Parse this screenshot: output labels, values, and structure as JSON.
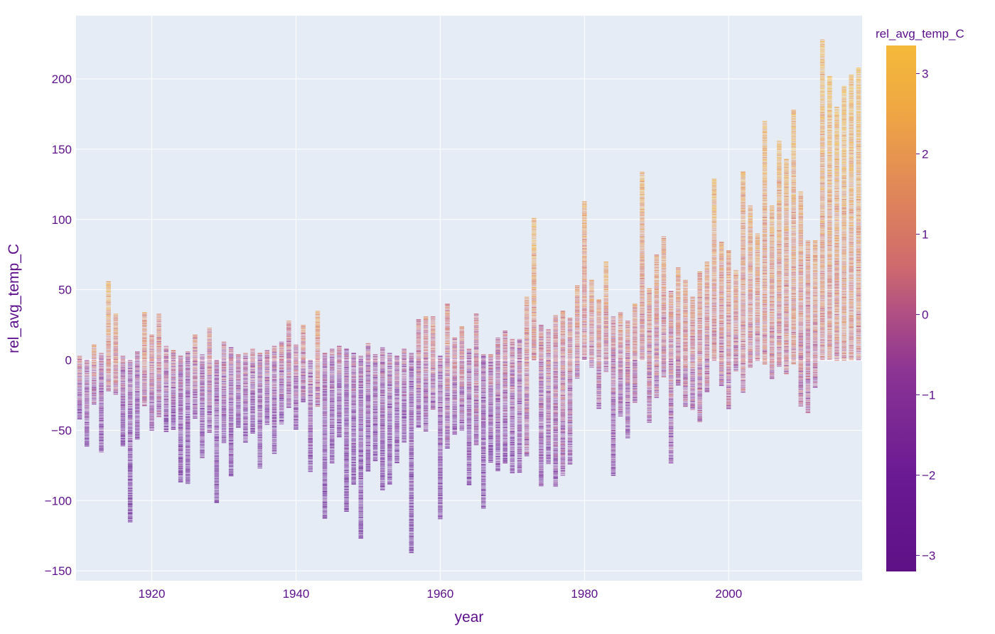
{
  "chart_data": {
    "type": "scatter",
    "marker": "dash",
    "xlabel": "year",
    "ylabel": "rel_avg_temp_C",
    "xlim": [
      1910,
      2018
    ],
    "ylim": [
      -157,
      245
    ],
    "x_ticks": [
      {
        "value": 1920,
        "label": "1920"
      },
      {
        "value": 1940,
        "label": "1940"
      },
      {
        "value": 1960,
        "label": "1960"
      },
      {
        "value": 1980,
        "label": "1980"
      },
      {
        "value": 2000,
        "label": "2000"
      }
    ],
    "y_ticks": [
      {
        "value": 200,
        "label": "200"
      },
      {
        "value": 150,
        "label": "150"
      },
      {
        "value": 100,
        "label": "100"
      },
      {
        "value": 50,
        "label": "50"
      },
      {
        "value": 0,
        "label": "0"
      },
      {
        "value": -50,
        "label": "−50"
      },
      {
        "value": -100,
        "label": "−100"
      },
      {
        "value": -150,
        "label": "−150"
      }
    ],
    "grid": true,
    "colorbar": {
      "title": "rel_avg_temp_C",
      "range": [
        -3.2,
        3.35
      ],
      "ticks": [
        {
          "value": 3,
          "label": "3"
        },
        {
          "value": 2,
          "label": "2"
        },
        {
          "value": 1,
          "label": "1"
        },
        {
          "value": 0,
          "label": "0"
        },
        {
          "value": -1,
          "label": "−1"
        },
        {
          "value": -2,
          "label": "−2"
        },
        {
          "value": -3,
          "label": "−3"
        }
      ],
      "colorscale": [
        "#0d0887",
        "#46039f",
        "#7201a8",
        "#9c179e",
        "#bd3786",
        "#d8576b",
        "#ed7953",
        "#fb9f3a",
        "#fdca26",
        "#f0f921"
      ]
    },
    "columns": [
      {
        "year": 1910,
        "min": -42,
        "max": 3,
        "mean": -0.7
      },
      {
        "year": 1911,
        "min": -61,
        "max": 0,
        "mean": -1.0
      },
      {
        "year": 1912,
        "min": -32,
        "max": 11,
        "mean": 0.1
      },
      {
        "year": 1913,
        "min": -66,
        "max": 5,
        "mean": -1.2
      },
      {
        "year": 1914,
        "min": -22,
        "max": 56,
        "mean": 1.4
      },
      {
        "year": 1915,
        "min": -25,
        "max": 33,
        "mean": 0.8
      },
      {
        "year": 1916,
        "min": -61,
        "max": 3,
        "mean": -1.1
      },
      {
        "year": 1917,
        "min": -115,
        "max": 0,
        "mean": -1.7
      },
      {
        "year": 1918,
        "min": -56,
        "max": 6,
        "mean": -1.2
      },
      {
        "year": 1919,
        "min": -33,
        "max": 34,
        "mean": 0.7
      },
      {
        "year": 1920,
        "min": -50,
        "max": 18,
        "mean": -0.3
      },
      {
        "year": 1921,
        "min": -40,
        "max": 33,
        "mean": 0.3
      },
      {
        "year": 1922,
        "min": -51,
        "max": 10,
        "mean": -0.8
      },
      {
        "year": 1923,
        "min": -49,
        "max": 7,
        "mean": -0.8
      },
      {
        "year": 1924,
        "min": -87,
        "max": 3,
        "mean": -1.5
      },
      {
        "year": 1925,
        "min": -88,
        "max": 6,
        "mean": -1.5
      },
      {
        "year": 1926,
        "min": -42,
        "max": 18,
        "mean": -0.1
      },
      {
        "year": 1927,
        "min": -70,
        "max": 4,
        "mean": -1.2
      },
      {
        "year": 1928,
        "min": -52,
        "max": 23,
        "mean": -0.2
      },
      {
        "year": 1929,
        "min": -102,
        "max": 0,
        "mean": -1.6
      },
      {
        "year": 1930,
        "min": -59,
        "max": 13,
        "mean": -0.8
      },
      {
        "year": 1931,
        "min": -82,
        "max": 9,
        "mean": -1.3
      },
      {
        "year": 1932,
        "min": -48,
        "max": 4,
        "mean": -0.9
      },
      {
        "year": 1933,
        "min": -58,
        "max": 5,
        "mean": -1.0
      },
      {
        "year": 1934,
        "min": -52,
        "max": 8,
        "mean": -0.9
      },
      {
        "year": 1935,
        "min": -77,
        "max": 5,
        "mean": -1.2
      },
      {
        "year": 1936,
        "min": -46,
        "max": 7,
        "mean": -0.8
      },
      {
        "year": 1937,
        "min": -66,
        "max": 10,
        "mean": -1.0
      },
      {
        "year": 1938,
        "min": -46,
        "max": 13,
        "mean": -0.7
      },
      {
        "year": 1939,
        "min": -34,
        "max": 28,
        "mean": -0.1
      },
      {
        "year": 1940,
        "min": -49,
        "max": 11,
        "mean": -0.7
      },
      {
        "year": 1941,
        "min": -30,
        "max": 25,
        "mean": 0.1
      },
      {
        "year": 1942,
        "min": -79,
        "max": 0,
        "mean": -1.2
      },
      {
        "year": 1943,
        "min": -33,
        "max": 35,
        "mean": 0.9
      },
      {
        "year": 1944,
        "min": -113,
        "max": 5,
        "mean": -1.6
      },
      {
        "year": 1945,
        "min": -73,
        "max": 8,
        "mean": -1.2
      },
      {
        "year": 1946,
        "min": -55,
        "max": 10,
        "mean": -1.0
      },
      {
        "year": 1947,
        "min": -108,
        "max": 8,
        "mean": -1.6
      },
      {
        "year": 1948,
        "min": -88,
        "max": 5,
        "mean": -1.4
      },
      {
        "year": 1949,
        "min": -127,
        "max": 3,
        "mean": -1.8
      },
      {
        "year": 1950,
        "min": -79,
        "max": 12,
        "mean": -1.2
      },
      {
        "year": 1951,
        "min": -72,
        "max": 4,
        "mean": -1.3
      },
      {
        "year": 1952,
        "min": -92,
        "max": 9,
        "mean": -1.3
      },
      {
        "year": 1953,
        "min": -88,
        "max": 5,
        "mean": -1.4
      },
      {
        "year": 1954,
        "min": -73,
        "max": 3,
        "mean": -1.2
      },
      {
        "year": 1955,
        "min": -58,
        "max": 8,
        "mean": -1.0
      },
      {
        "year": 1956,
        "min": -137,
        "max": 5,
        "mean": -1.9
      },
      {
        "year": 1957,
        "min": -48,
        "max": 29,
        "mean": -0.2
      },
      {
        "year": 1958,
        "min": -51,
        "max": 31,
        "mean": -0.2
      },
      {
        "year": 1959,
        "min": -35,
        "max": 31,
        "mean": 0.1
      },
      {
        "year": 1960,
        "min": -113,
        "max": 3,
        "mean": -1.6
      },
      {
        "year": 1961,
        "min": -63,
        "max": 40,
        "mean": 0.0
      },
      {
        "year": 1962,
        "min": -53,
        "max": 16,
        "mean": -0.5
      },
      {
        "year": 1963,
        "min": -50,
        "max": 24,
        "mean": -0.2
      },
      {
        "year": 1964,
        "min": -89,
        "max": 8,
        "mean": -1.3
      },
      {
        "year": 1965,
        "min": -60,
        "max": 33,
        "mean": -0.2
      },
      {
        "year": 1966,
        "min": -106,
        "max": 4,
        "mean": -1.5
      },
      {
        "year": 1967,
        "min": -73,
        "max": 4,
        "mean": -1.1
      },
      {
        "year": 1968,
        "min": -79,
        "max": 16,
        "mean": -0.9
      },
      {
        "year": 1969,
        "min": -73,
        "max": 21,
        "mean": -0.6
      },
      {
        "year": 1970,
        "min": -80,
        "max": 15,
        "mean": -0.9
      },
      {
        "year": 1971,
        "min": -80,
        "max": 15,
        "mean": -0.9
      },
      {
        "year": 1972,
        "min": -68,
        "max": 45,
        "mean": 0.2
      },
      {
        "year": 1973,
        "min": 0,
        "max": 101,
        "mean": 1.6
      },
      {
        "year": 1974,
        "min": -90,
        "max": 25,
        "mean": -0.6
      },
      {
        "year": 1975,
        "min": -74,
        "max": 22,
        "mean": -0.4
      },
      {
        "year": 1976,
        "min": -90,
        "max": 32,
        "mean": -0.4
      },
      {
        "year": 1977,
        "min": -82,
        "max": 35,
        "mean": -0.1
      },
      {
        "year": 1978,
        "min": -74,
        "max": 30,
        "mean": -0.3
      },
      {
        "year": 1979,
        "min": -13,
        "max": 53,
        "mean": 0.6
      },
      {
        "year": 1980,
        "min": 0,
        "max": 113,
        "mean": 1.2
      },
      {
        "year": 1981,
        "min": -5,
        "max": 57,
        "mean": 0.8
      },
      {
        "year": 1982,
        "min": -35,
        "max": 43,
        "mean": 0.4
      },
      {
        "year": 1983,
        "min": -8,
        "max": 70,
        "mean": 1.0
      },
      {
        "year": 1984,
        "min": -82,
        "max": 31,
        "mean": -0.6
      },
      {
        "year": 1985,
        "min": -40,
        "max": 34,
        "mean": 0.1
      },
      {
        "year": 1986,
        "min": -56,
        "max": 28,
        "mean": -0.2
      },
      {
        "year": 1987,
        "min": -30,
        "max": 40,
        "mean": 0.3
      },
      {
        "year": 1988,
        "min": 0,
        "max": 134,
        "mean": 1.3
      },
      {
        "year": 1989,
        "min": -45,
        "max": 51,
        "mean": 0.2
      },
      {
        "year": 1990,
        "min": -27,
        "max": 75,
        "mean": 0.6
      },
      {
        "year": 1991,
        "min": -12,
        "max": 88,
        "mean": 0.8
      },
      {
        "year": 1992,
        "min": -73,
        "max": 49,
        "mean": -0.1
      },
      {
        "year": 1993,
        "min": -18,
        "max": 66,
        "mean": 0.6
      },
      {
        "year": 1994,
        "min": -33,
        "max": 57,
        "mean": 0.5
      },
      {
        "year": 1995,
        "min": -35,
        "max": 45,
        "mean": 0.3
      },
      {
        "year": 1996,
        "min": -44,
        "max": 63,
        "mean": 0.4
      },
      {
        "year": 1997,
        "min": -23,
        "max": 70,
        "mean": 0.6
      },
      {
        "year": 1998,
        "min": 0,
        "max": 129,
        "mean": 1.4
      },
      {
        "year": 1999,
        "min": -18,
        "max": 84,
        "mean": 0.8
      },
      {
        "year": 2000,
        "min": -35,
        "max": 78,
        "mean": 0.6
      },
      {
        "year": 2001,
        "min": -8,
        "max": 64,
        "mean": 0.7
      },
      {
        "year": 2002,
        "min": -23,
        "max": 134,
        "mean": 1.1
      },
      {
        "year": 2003,
        "min": -5,
        "max": 110,
        "mean": 1.1
      },
      {
        "year": 2004,
        "min": 0,
        "max": 90,
        "mean": 1.0
      },
      {
        "year": 2005,
        "min": -3,
        "max": 170,
        "mean": 1.5
      },
      {
        "year": 2006,
        "min": -13,
        "max": 110,
        "mean": 1.1
      },
      {
        "year": 2007,
        "min": -5,
        "max": 156,
        "mean": 1.4
      },
      {
        "year": 2008,
        "min": -10,
        "max": 143,
        "mean": 1.3
      },
      {
        "year": 2009,
        "min": -3,
        "max": 178,
        "mean": 1.6
      },
      {
        "year": 2010,
        "min": -33,
        "max": 120,
        "mean": 0.9
      },
      {
        "year": 2011,
        "min": -38,
        "max": 85,
        "mean": 0.5
      },
      {
        "year": 2012,
        "min": -20,
        "max": 85,
        "mean": 0.8
      },
      {
        "year": 2013,
        "min": 0,
        "max": 228,
        "mean": 1.8
      },
      {
        "year": 2014,
        "min": 0,
        "max": 202,
        "mean": 1.8
      },
      {
        "year": 2015,
        "min": 0,
        "max": 180,
        "mean": 1.7
      },
      {
        "year": 2016,
        "min": 0,
        "max": 195,
        "mean": 1.9
      },
      {
        "year": 2017,
        "min": 0,
        "max": 203,
        "mean": 1.8
      },
      {
        "year": 2018,
        "min": 0,
        "max": 208,
        "mean": 1.8
      }
    ]
  }
}
